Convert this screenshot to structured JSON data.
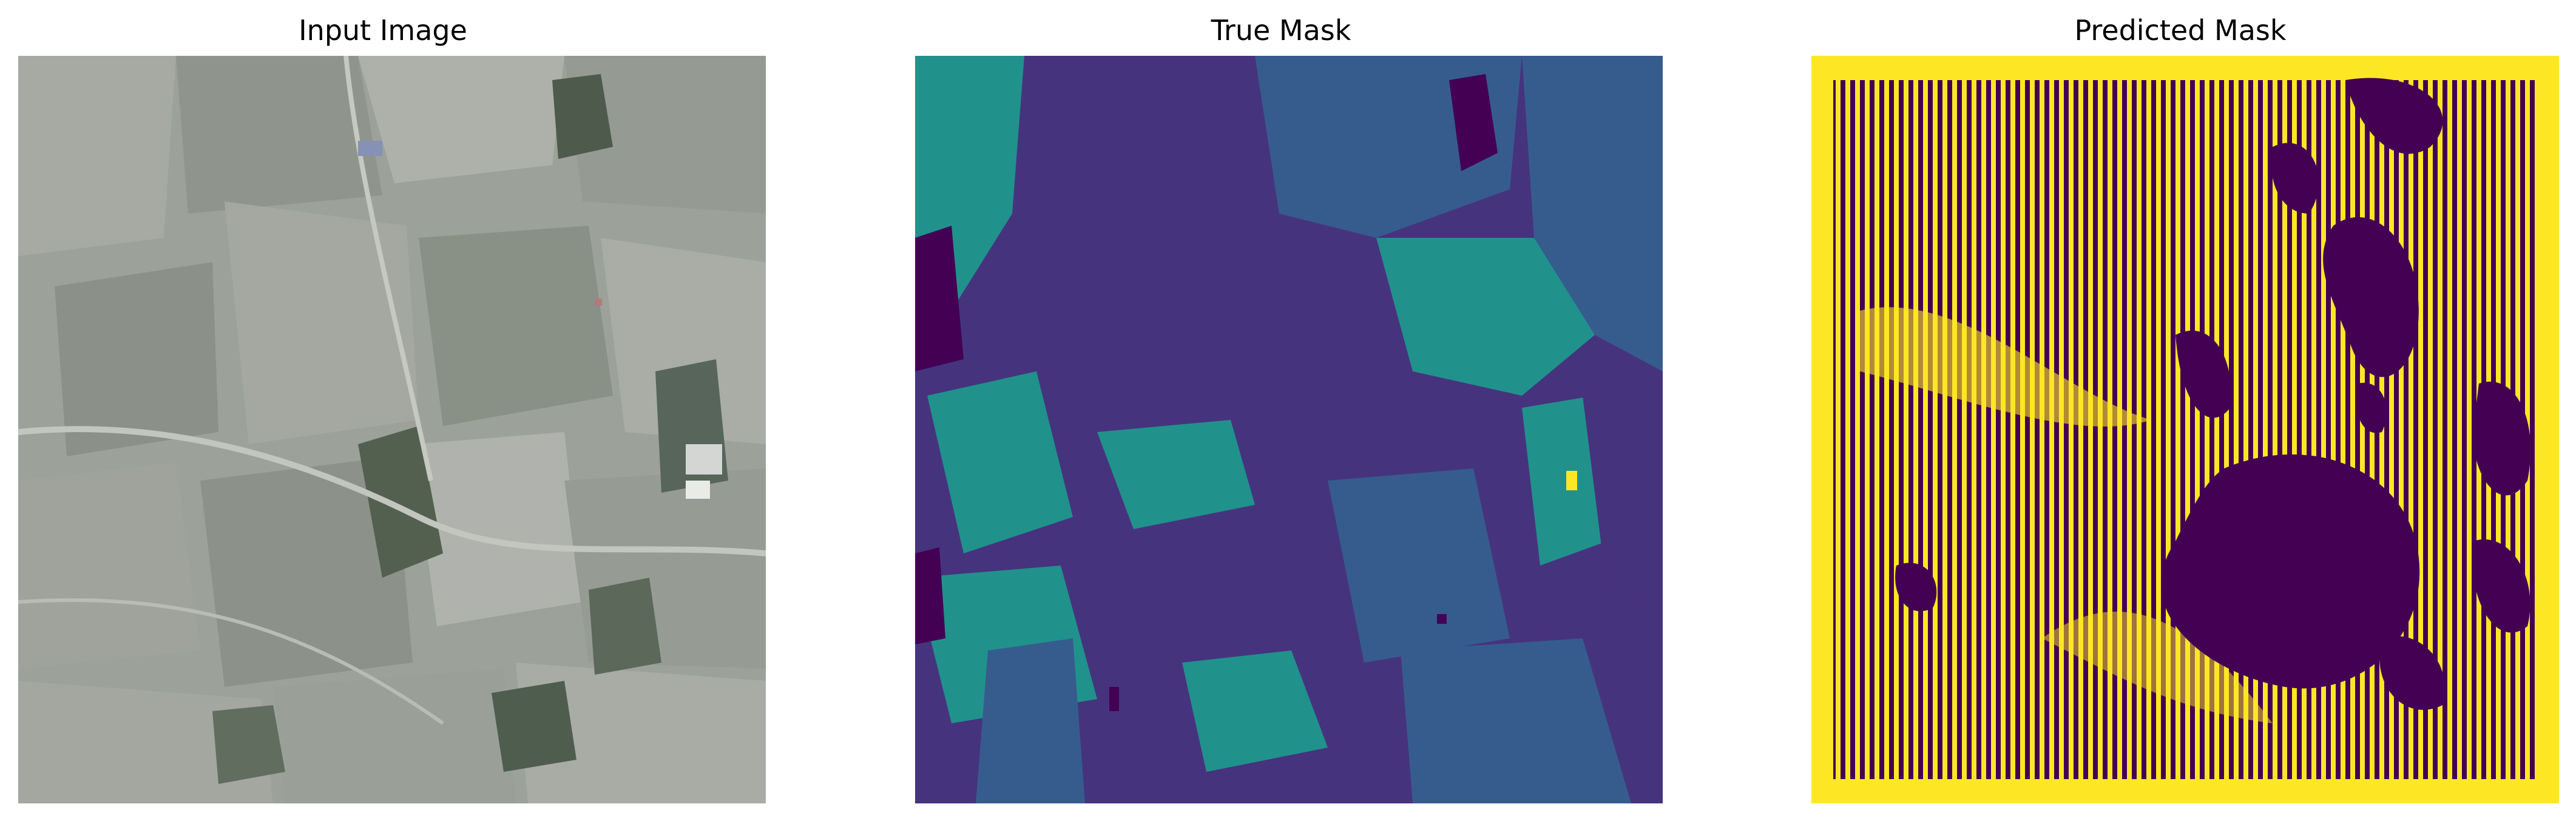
{
  "panels": [
    {
      "title": "Input Image"
    },
    {
      "title": "True Mask"
    },
    {
      "title": "Predicted Mask"
    }
  ],
  "colors": {
    "viridis_dark": "#440154",
    "viridis_purple": "#46337e",
    "viridis_blue": "#365c8d",
    "viridis_teal": "#21918c",
    "viridis_green": "#2db27d",
    "viridis_yellow": "#fde725",
    "aerial_base": "#9aa097"
  }
}
